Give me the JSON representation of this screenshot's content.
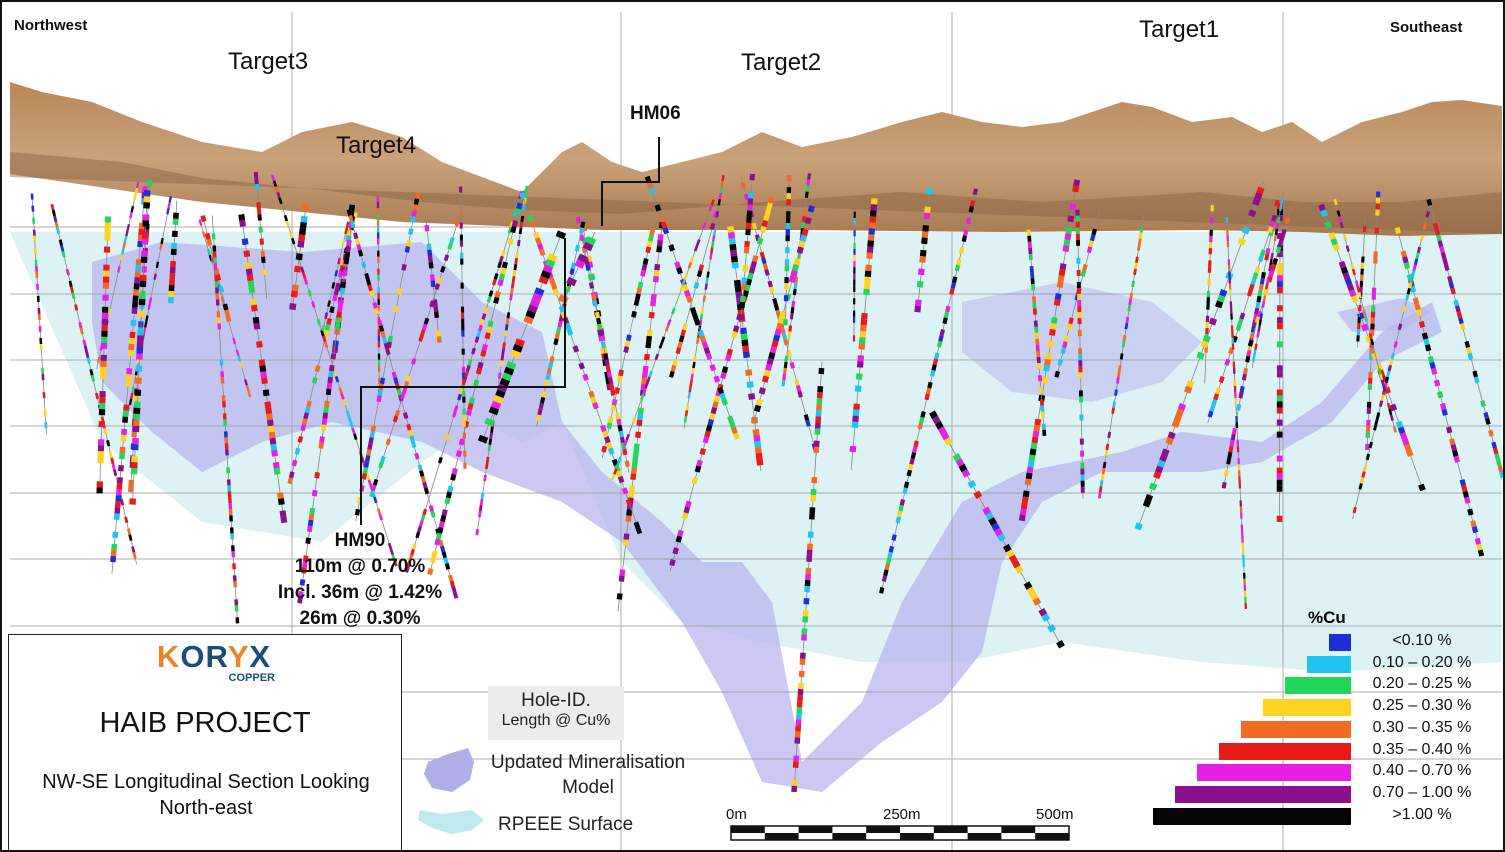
{
  "section": {
    "corner_left": "Northwest",
    "corner_right": "Southeast",
    "targets": [
      "Target3",
      "Target4",
      "Target2",
      "Target1"
    ],
    "hole_callouts": {
      "hm06": "HM06",
      "hm90": {
        "id": "HM90",
        "line1": "110m @ 0.70%",
        "line2": "Incl. 36m @ 1.42%",
        "line3": "26m @ 0.30%"
      }
    }
  },
  "title_box": {
    "logo_word": "KORYX",
    "logo_sub": "COPPER",
    "project": "HAIB PROJECT",
    "subtitle_line1": "NW-SE Longitudinal Section Looking",
    "subtitle_line2": "North-east"
  },
  "legend": {
    "hole_label_line1": "Hole-ID.",
    "hole_label_line2": "Length @ Cu%",
    "mineral_model_line1": "Updated Mineralisation",
    "mineral_model_line2": "Model",
    "rpeee": "RPEEE Surface",
    "cu_title": "%Cu",
    "cu_classes": [
      {
        "label": "<0.10 %",
        "color": "#1f2fd6"
      },
      {
        "label": "0.10 – 0.20 %",
        "color": "#1fc5ef"
      },
      {
        "label": "0.20 – 0.25 %",
        "color": "#22d65a"
      },
      {
        "label": "0.25 – 0.30 %",
        "color": "#ffd21f"
      },
      {
        "label": "0.30 – 0.35 %",
        "color": "#f36b22"
      },
      {
        "label": "0.35 – 0.40 %",
        "color": "#e81a1a"
      },
      {
        "label": "0.40 – 0.70 %",
        "color": "#e61fe6"
      },
      {
        "label": "0.70 – 1.00 %",
        "color": "#8b108b"
      },
      {
        "label": ">1.00 %",
        "color": "#050505"
      }
    ]
  },
  "scale_bar": {
    "labels": [
      "0m",
      "250m",
      "500m"
    ]
  },
  "colors": {
    "model_fill": "#b7b4ee",
    "rpeee_fill": "#cdeef0",
    "terrain": "#c9a27a",
    "grid": "#9a9a9a"
  }
}
